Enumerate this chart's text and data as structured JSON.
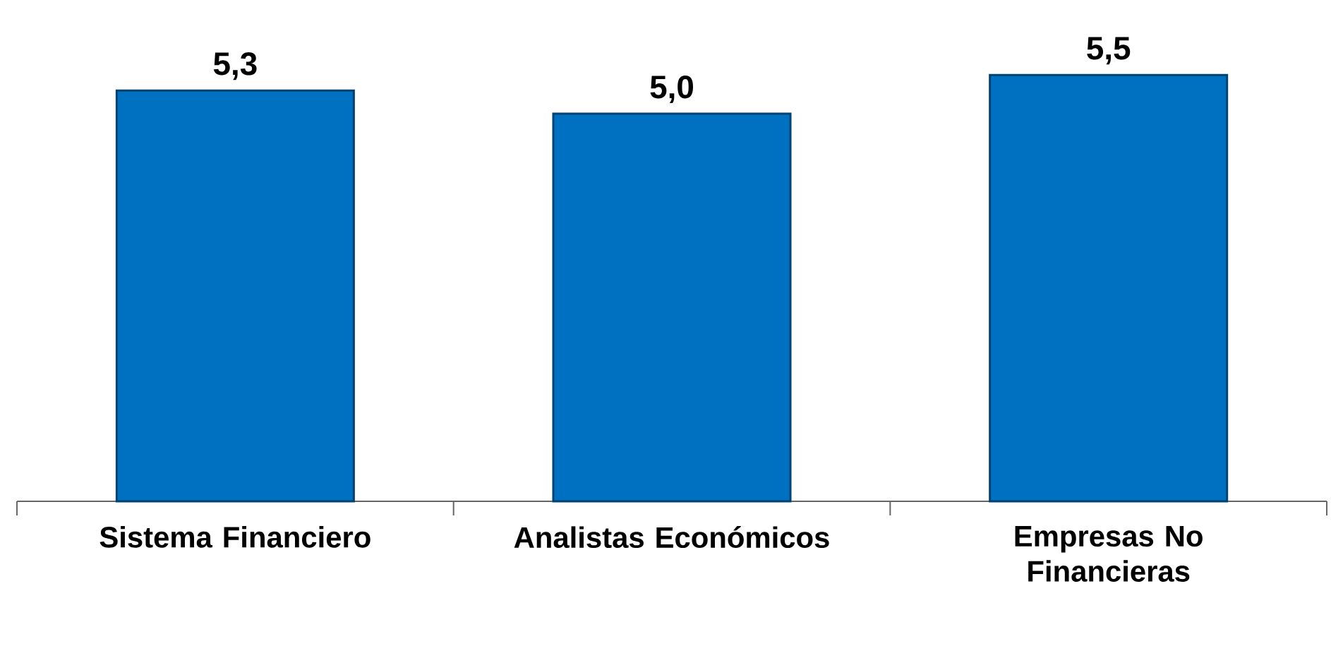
{
  "chart_data": {
    "type": "bar",
    "categories": [
      "Sistema Financiero",
      "Analistas Económicos",
      "Empresas No Financieras"
    ],
    "values": [
      5.3,
      5.0,
      5.5
    ],
    "value_labels": [
      "5,3",
      "5,0",
      "5,5"
    ],
    "color": "#0070c0",
    "tick_labels": "x"
  }
}
